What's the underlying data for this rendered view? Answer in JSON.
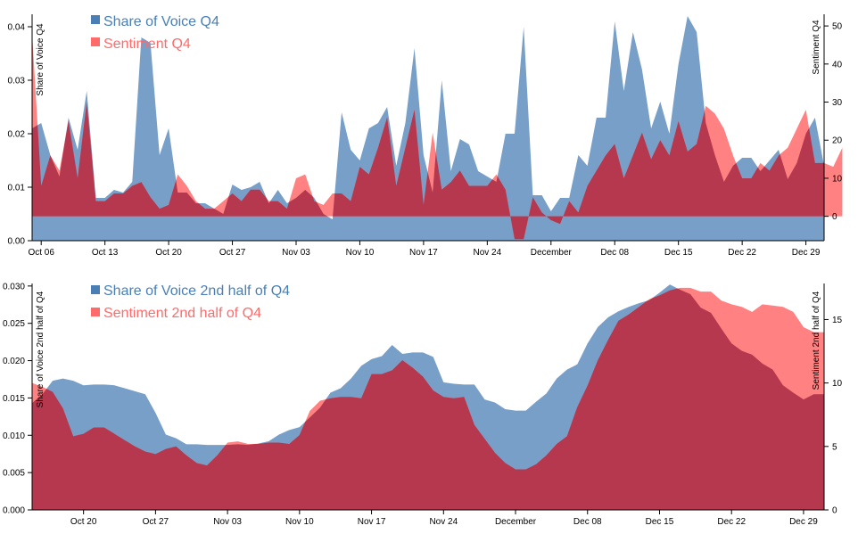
{
  "colors": {
    "sov": "#4a7fb5",
    "sentiment": "#ff6b6b",
    "overlap": "#b5384e"
  },
  "chart_data": [
    {
      "type": "area",
      "legend": [
        "Share of Voice Q4",
        "Sentiment Q4"
      ],
      "ylabel_left": "Share of Voice Q4",
      "ylabel_right": "Sentiment Q4",
      "ylim_left": [
        0,
        0.042
      ],
      "ylim_right": [
        -6.4,
        52.6
      ],
      "yticks_left": [
        "0.00",
        "0.01",
        "0.02",
        "0.03",
        "0.04"
      ],
      "ytick_values_left": [
        0,
        0.01,
        0.02,
        0.03,
        0.04
      ],
      "yticks_right": [
        "0",
        "10",
        "20",
        "30",
        "40",
        "50"
      ],
      "ytick_values_right": [
        0,
        10,
        20,
        30,
        40,
        50
      ],
      "x_start": "Oct 05",
      "xticks": [
        {
          "label": "Oct 06",
          "day": 1
        },
        {
          "label": "Oct 13",
          "day": 8
        },
        {
          "label": "Oct 20",
          "day": 15
        },
        {
          "label": "Oct 27",
          "day": 22
        },
        {
          "label": "Nov 03",
          "day": 29
        },
        {
          "label": "Nov 10",
          "day": 36
        },
        {
          "label": "Nov 17",
          "day": 43
        },
        {
          "label": "Nov 24",
          "day": 50
        },
        {
          "label": "December",
          "day": 57
        },
        {
          "label": "Dec 08",
          "day": 64
        },
        {
          "label": "Dec 15",
          "day": 71
        },
        {
          "label": "Dec 22",
          "day": 78
        },
        {
          "label": "Dec 29",
          "day": 85
        }
      ],
      "x_end_day": 87,
      "series": [
        {
          "name": "Share of Voice Q4",
          "values": [
            0.021,
            0.022,
            0.016,
            0.012,
            0.023,
            0.017,
            0.028,
            0.008,
            0.008,
            0.0095,
            0.009,
            0.011,
            0.038,
            0.037,
            0.016,
            0.021,
            0.009,
            0.009,
            0.007,
            0.007,
            0.006,
            0.005,
            0.0105,
            0.0095,
            0.01,
            0.011,
            0.007,
            0.0095,
            0.007,
            0.008,
            0.0095,
            0.008,
            0.005,
            0.004,
            0.024,
            0.017,
            0.015,
            0.021,
            0.022,
            0.025,
            0.014,
            0.022,
            0.036,
            0.016,
            0.009,
            0.03,
            0.013,
            0.019,
            0.018,
            0.013,
            0.012,
            0.011,
            0.02,
            0.02,
            0.04,
            0.0085,
            0.0085,
            0.0055,
            0.008,
            0.008,
            0.016,
            0.014,
            0.023,
            0.023,
            0.041,
            0.028,
            0.039,
            0.032,
            0.021,
            0.026,
            0.02,
            0.033,
            0.042,
            0.039,
            0.022,
            0.016,
            0.011,
            0.014,
            0.0155,
            0.0155,
            0.013,
            0.015,
            0.017,
            0.0115,
            0.0145,
            0.02,
            0.023,
            0.014
          ]
        },
        {
          "name": "Sentiment Q4",
          "values": [
            48,
            8,
            16,
            12,
            25,
            10,
            30,
            4,
            4,
            6,
            6,
            8,
            9,
            5,
            2,
            3,
            11,
            8,
            4,
            2,
            2,
            4,
            6,
            4,
            7,
            7,
            4,
            4,
            2,
            10,
            11,
            4,
            3,
            6,
            6,
            4,
            13,
            11,
            18,
            26,
            8,
            18,
            28,
            3,
            22,
            7,
            9,
            12,
            8,
            8,
            8,
            11,
            7,
            -6,
            -6,
            5,
            1,
            -1,
            -2,
            4,
            1,
            8,
            12,
            16,
            19,
            10,
            16,
            22,
            15,
            20,
            16,
            25,
            17,
            19,
            29,
            27,
            23,
            16,
            10,
            10,
            14,
            12,
            16,
            18,
            23,
            28,
            14,
            14,
            13,
            18
          ]
        }
      ]
    },
    {
      "type": "area",
      "legend": [
        "Share of Voice 2nd half of Q4",
        "Sentiment 2nd half of Q4"
      ],
      "ylabel_left": "Share of Voice 2nd half of Q4",
      "ylabel_right": "Sentiment 2nd half of Q4",
      "ylim_left": [
        0,
        0.0301
      ],
      "ylim_right": [
        0,
        17.7
      ],
      "yticks_left": [
        "0.000",
        "0.005",
        "0.010",
        "0.015",
        "0.020",
        "0.025",
        "0.030"
      ],
      "ytick_values_left": [
        0,
        0.005,
        0.01,
        0.015,
        0.02,
        0.025,
        0.03
      ],
      "yticks_right": [
        "0",
        "5",
        "10",
        "15"
      ],
      "ytick_values_right": [
        0,
        5,
        10,
        15
      ],
      "x_start": "Oct 15",
      "xticks": [
        {
          "label": "Oct 20",
          "day": 5
        },
        {
          "label": "Oct 27",
          "day": 12
        },
        {
          "label": "Nov 03",
          "day": 19
        },
        {
          "label": "Nov 10",
          "day": 26
        },
        {
          "label": "Nov 17",
          "day": 33
        },
        {
          "label": "Nov 24",
          "day": 40
        },
        {
          "label": "December",
          "day": 47
        },
        {
          "label": "Dec 08",
          "day": 54
        },
        {
          "label": "Dec 15",
          "day": 61
        },
        {
          "label": "Dec 22",
          "day": 68
        },
        {
          "label": "Dec 29",
          "day": 75
        }
      ],
      "x_end_day": 77,
      "series": [
        {
          "name": "Share of Voice 2nd half of Q4",
          "values": [
            0.0143,
            0.0155,
            0.0173,
            0.0176,
            0.0173,
            0.0167,
            0.0168,
            0.0168,
            0.0167,
            0.0163,
            0.0159,
            0.0155,
            0.013,
            0.0101,
            0.0096,
            0.0088,
            0.0088,
            0.0087,
            0.0087,
            0.0087,
            0.0088,
            0.0087,
            0.0089,
            0.0092,
            0.0101,
            0.0107,
            0.0111,
            0.0124,
            0.0137,
            0.0157,
            0.0163,
            0.0176,
            0.0193,
            0.0202,
            0.0206,
            0.0221,
            0.0209,
            0.0211,
            0.0211,
            0.0205,
            0.0171,
            0.0169,
            0.0168,
            0.0168,
            0.0148,
            0.0144,
            0.0135,
            0.0133,
            0.0133,
            0.0145,
            0.0156,
            0.0176,
            0.0188,
            0.0195,
            0.0223,
            0.0245,
            0.0258,
            0.0266,
            0.0272,
            0.0277,
            0.0281,
            0.0291,
            0.0302,
            0.0295,
            0.0289,
            0.0271,
            0.0264,
            0.0243,
            0.0223,
            0.0213,
            0.0208,
            0.0196,
            0.0188,
            0.0167,
            0.0157,
            0.0148,
            0.0155,
            0.0155
          ]
        },
        {
          "name": "Sentiment 2nd half of Q4",
          "values": [
            10,
            9.7,
            9.3,
            8,
            5.8,
            6,
            6.5,
            6.5,
            6,
            5.5,
            5,
            4.6,
            4.4,
            4.8,
            5,
            4.3,
            3.7,
            3.5,
            4.3,
            5.3,
            5.4,
            5.2,
            5.2,
            5.3,
            5.3,
            5.2,
            5.9,
            7.8,
            8.6,
            8.8,
            8.9,
            8.9,
            8.8,
            10.7,
            10.7,
            11.0,
            11.8,
            11.2,
            10.5,
            9.4,
            8.9,
            8.8,
            8.9,
            6.7,
            5.6,
            4.5,
            3.7,
            3.2,
            3.2,
            3.6,
            4.3,
            5.2,
            5.8,
            8.1,
            9.8,
            11.8,
            13.4,
            14.9,
            15.4,
            16.0,
            16.6,
            16.9,
            17.3,
            17.5,
            17.5,
            17.2,
            17.2,
            16.5,
            16.2,
            16.0,
            15.6,
            16.2,
            16.1,
            16.0,
            15.6,
            14.4,
            14.0,
            14.0
          ]
        }
      ]
    }
  ]
}
